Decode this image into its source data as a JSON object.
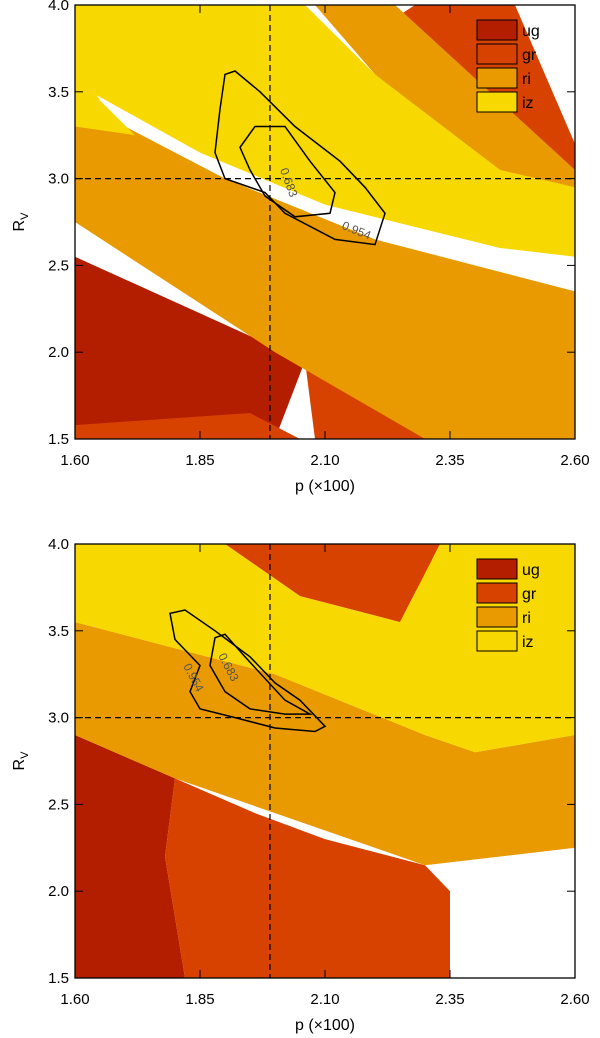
{
  "chart_data": [
    {
      "type": "contour",
      "title": "",
      "xlabel": "p (×100)",
      "ylabel": "R",
      "ylabel_sub": "V",
      "xlim": [
        1.6,
        2.6
      ],
      "ylim": [
        1.5,
        4.0
      ],
      "xticks": [
        "1.60",
        "1.85",
        "2.10",
        "2.35",
        "2.60"
      ],
      "yticks": [
        "1.5",
        "2.0",
        "2.5",
        "3.0",
        "3.5",
        "4.0"
      ],
      "reference_lines": {
        "x": 1.99,
        "y": 3.0
      },
      "legend": [
        {
          "name": "ug",
          "color": "#b41e00"
        },
        {
          "name": "gr",
          "color": "#d84200"
        },
        {
          "name": "ri",
          "color": "#e89a00"
        },
        {
          "name": "iz",
          "color": "#f7d800"
        }
      ],
      "contour_levels": [
        "0.683",
        "0.954"
      ],
      "series": [
        {
          "name": "ug",
          "color": "#b41e00",
          "polygons": [
            [
              [
                1.6,
                2.55
              ],
              [
                1.6,
                1.5
              ],
              [
                2.0,
                1.5
              ],
              [
                2.06,
                1.95
              ]
            ],
            [
              [
                1.6,
                2.9
              ],
              [
                1.6,
                3.1
              ],
              [
                1.74,
                3.0
              ],
              [
                1.64,
                2.85
              ]
            ]
          ]
        },
        {
          "name": "gr",
          "color": "#d84200",
          "polygons": [
            [
              [
                1.6,
                1.5
              ],
              [
                1.6,
                1.58
              ],
              [
                1.95,
                1.65
              ],
              [
                2.05,
                1.5
              ]
            ],
            [
              [
                2.28,
                4.0
              ],
              [
                2.48,
                4.0
              ],
              [
                2.6,
                3.2
              ],
              [
                2.6,
                3.0
              ],
              [
                2.45,
                3.1
              ],
              [
                2.35,
                3.45
              ],
              [
                2.2,
                3.85
              ]
            ],
            [
              [
                2.06,
                1.95
              ],
              [
                2.08,
                1.5
              ],
              [
                2.32,
                1.5
              ],
              [
                2.2,
                1.82
              ]
            ]
          ]
        },
        {
          "name": "ri",
          "color": "#e89a00",
          "polygons": [
            [
              [
                1.6,
                3.5
              ],
              [
                1.6,
                2.75
              ],
              [
                2.0,
                2.0
              ],
              [
                2.3,
                1.5
              ],
              [
                2.6,
                1.5
              ],
              [
                2.6,
                2.35
              ],
              [
                2.2,
                2.65
              ],
              [
                1.9,
                3.0
              ],
              [
                1.7,
                3.3
              ]
            ],
            [
              [
                2.08,
                4.0
              ],
              [
                2.24,
                4.0
              ],
              [
                2.6,
                3.05
              ],
              [
                2.6,
                2.9
              ],
              [
                2.45,
                2.95
              ],
              [
                2.2,
                3.6
              ]
            ]
          ]
        },
        {
          "name": "iz",
          "color": "#f7d800",
          "polygons": [
            [
              [
                1.6,
                4.0
              ],
              [
                1.6,
                3.55
              ],
              [
                1.85,
                3.15
              ],
              [
                2.1,
                2.85
              ],
              [
                2.45,
                2.6
              ],
              [
                2.6,
                2.55
              ],
              [
                2.6,
                2.95
              ],
              [
                2.45,
                3.05
              ],
              [
                2.2,
                3.6
              ],
              [
                2.06,
                4.0
              ]
            ],
            [
              [
                1.6,
                3.7
              ],
              [
                1.6,
                3.3
              ],
              [
                1.72,
                3.25
              ],
              [
                1.65,
                3.45
              ]
            ]
          ]
        }
      ],
      "contours": [
        {
          "level": "0.683",
          "points": [
            [
              1.96,
              3.3
            ],
            [
              2.02,
              3.3
            ],
            [
              2.07,
              3.1
            ],
            [
              2.12,
              2.92
            ],
            [
              2.11,
              2.8
            ],
            [
              2.04,
              2.78
            ],
            [
              1.98,
              2.9
            ],
            [
              1.95,
              3.05
            ],
            [
              1.93,
              3.18
            ]
          ]
        },
        {
          "level": "0.954",
          "points": [
            [
              1.9,
              3.6
            ],
            [
              1.92,
              3.62
            ],
            [
              1.97,
              3.5
            ],
            [
              2.04,
              3.3
            ],
            [
              2.13,
              3.1
            ],
            [
              2.18,
              2.95
            ],
            [
              2.22,
              2.8
            ],
            [
              2.2,
              2.62
            ],
            [
              2.12,
              2.65
            ],
            [
              2.02,
              2.8
            ],
            [
              1.98,
              2.92
            ],
            [
              1.9,
              3.0
            ],
            [
              1.88,
              3.15
            ],
            [
              1.89,
              3.4
            ]
          ]
        }
      ]
    },
    {
      "type": "contour",
      "title": "",
      "xlabel": "p (×100)",
      "ylabel": "R",
      "ylabel_sub": "V",
      "xlim": [
        1.6,
        2.6
      ],
      "ylim": [
        1.5,
        4.0
      ],
      "xticks": [
        "1.60",
        "1.85",
        "2.10",
        "2.35",
        "2.60"
      ],
      "yticks": [
        "1.5",
        "2.0",
        "2.5",
        "3.0",
        "3.5",
        "4.0"
      ],
      "reference_lines": {
        "x": 1.99,
        "y": 3.0
      },
      "legend": [
        {
          "name": "ug",
          "color": "#b41e00"
        },
        {
          "name": "gr",
          "color": "#d84200"
        },
        {
          "name": "ri",
          "color": "#e89a00"
        },
        {
          "name": "iz",
          "color": "#f7d800"
        }
      ],
      "contour_levels": [
        "0.954",
        "0.683"
      ],
      "series": [
        {
          "name": "ug",
          "color": "#b41e00",
          "polygons": [
            [
              [
                1.6,
                2.9
              ],
              [
                1.8,
                2.65
              ],
              [
                1.78,
                2.2
              ],
              [
                1.82,
                1.5
              ],
              [
                1.6,
                1.5
              ]
            ],
            [
              [
                2.26,
                4.0
              ],
              [
                2.32,
                4.0
              ],
              [
                2.3,
                3.7
              ],
              [
                2.25,
                3.8
              ]
            ]
          ]
        },
        {
          "name": "gr",
          "color": "#d84200",
          "polygons": [
            [
              [
                1.8,
                2.65
              ],
              [
                1.96,
                2.45
              ],
              [
                2.1,
                2.3
              ],
              [
                2.3,
                2.15
              ],
              [
                2.35,
                2.0
              ],
              [
                2.35,
                1.5
              ],
              [
                1.82,
                1.5
              ],
              [
                1.78,
                2.2
              ]
            ],
            [
              [
                1.9,
                4.0
              ],
              [
                2.33,
                4.0
              ],
              [
                2.25,
                3.55
              ],
              [
                2.05,
                3.7
              ]
            ]
          ]
        },
        {
          "name": "ri",
          "color": "#e89a00",
          "polygons": [
            [
              [
                1.6,
                3.55
              ],
              [
                1.6,
                2.9
              ],
              [
                1.8,
                2.65
              ],
              [
                2.0,
                2.45
              ],
              [
                2.3,
                2.15
              ],
              [
                2.6,
                2.25
              ],
              [
                2.6,
                2.9
              ],
              [
                2.4,
                2.8
              ],
              [
                2.3,
                2.9
              ],
              [
                2.0,
                3.25
              ],
              [
                1.8,
                3.4
              ]
            ]
          ]
        },
        {
          "name": "iz",
          "color": "#f7d800",
          "polygons": [
            [
              [
                1.6,
                4.0
              ],
              [
                1.9,
                4.0
              ],
              [
                2.05,
                3.7
              ],
              [
                2.25,
                3.55
              ],
              [
                2.33,
                4.0
              ],
              [
                2.6,
                4.0
              ],
              [
                2.6,
                2.9
              ],
              [
                2.4,
                2.8
              ],
              [
                2.3,
                2.9
              ],
              [
                2.0,
                3.25
              ],
              [
                1.8,
                3.4
              ],
              [
                1.6,
                3.55
              ]
            ]
          ]
        }
      ],
      "contours": [
        {
          "level": "0.683",
          "points": [
            [
              1.88,
              3.46
            ],
            [
              1.9,
              3.48
            ],
            [
              1.94,
              3.35
            ],
            [
              2.02,
              3.1
            ],
            [
              2.07,
              3.02
            ],
            [
              2.02,
              3.02
            ],
            [
              1.95,
              3.05
            ],
            [
              1.9,
              3.15
            ],
            [
              1.87,
              3.3
            ]
          ]
        },
        {
          "level": "0.954",
          "points": [
            [
              1.79,
              3.6
            ],
            [
              1.82,
              3.62
            ],
            [
              1.88,
              3.5
            ],
            [
              1.95,
              3.35
            ],
            [
              2.0,
              3.2
            ],
            [
              2.05,
              3.1
            ],
            [
              2.1,
              2.95
            ],
            [
              2.08,
              2.92
            ],
            [
              2.0,
              2.94
            ],
            [
              1.92,
              3.0
            ],
            [
              1.85,
              3.05
            ],
            [
              1.83,
              3.15
            ],
            [
              1.85,
              3.3
            ],
            [
              1.8,
              3.45
            ]
          ]
        }
      ]
    }
  ]
}
